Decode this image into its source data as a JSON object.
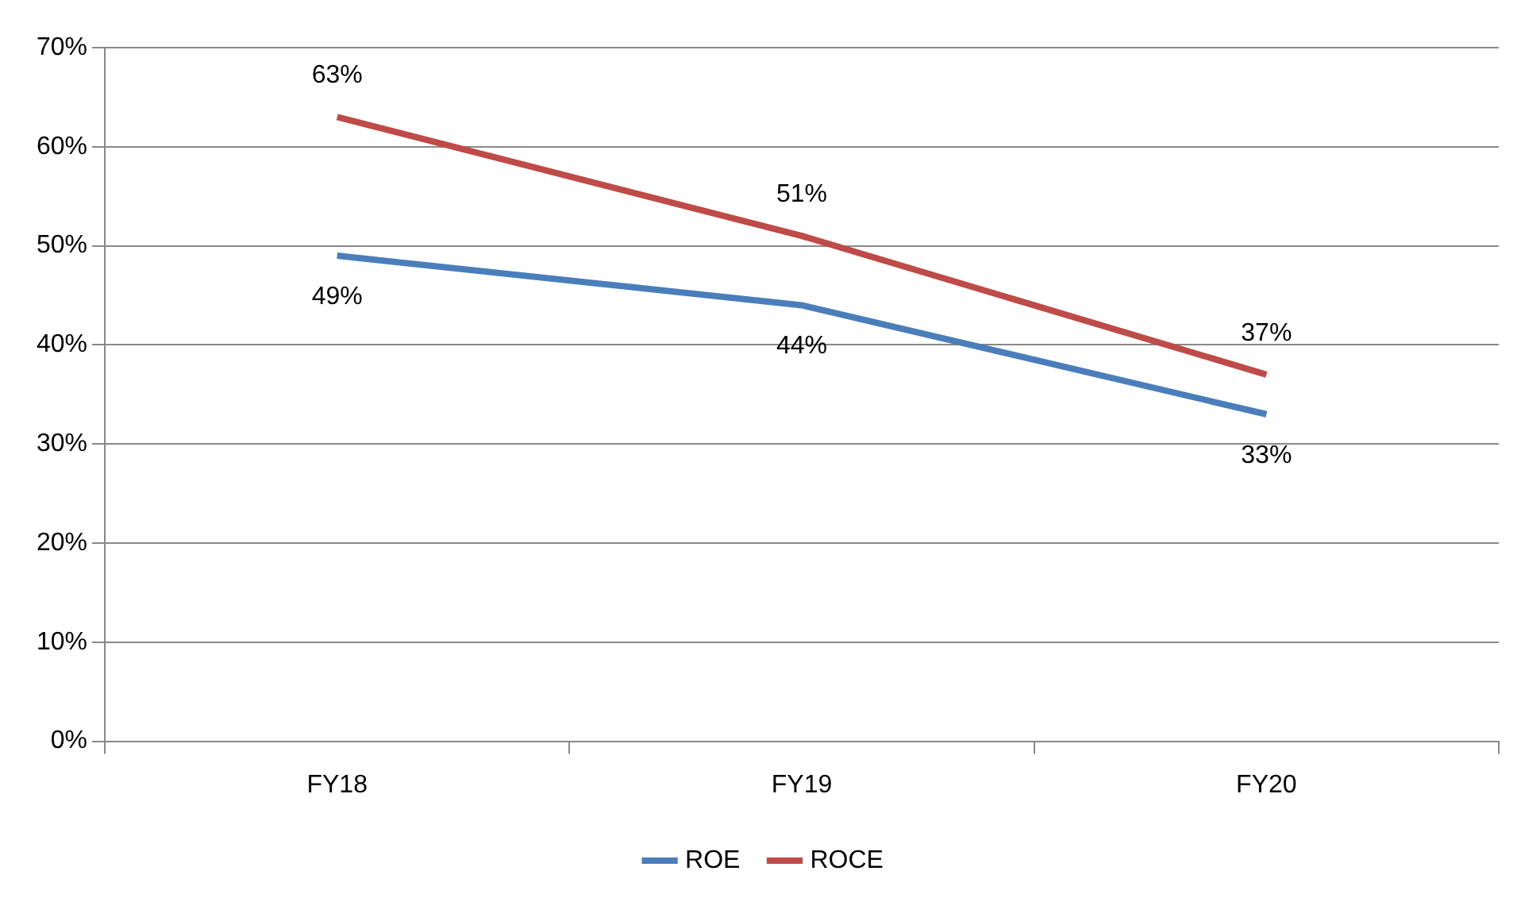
{
  "chart_data": {
    "type": "line",
    "categories": [
      "FY18",
      "FY19",
      "FY20"
    ],
    "series": [
      {
        "name": "ROE",
        "color": "#4a7ebb",
        "values": [
          49,
          44,
          33
        ],
        "value_labels": [
          "49%",
          "44%",
          "33%"
        ]
      },
      {
        "name": "ROCE",
        "color": "#be4b48",
        "values": [
          63,
          51,
          37
        ],
        "value_labels": [
          "63%",
          "51%",
          "37%"
        ]
      }
    ],
    "ylim": [
      0,
      70
    ],
    "yticks": [
      {
        "value": 0,
        "label": "0%"
      },
      {
        "value": 10,
        "label": "10%"
      },
      {
        "value": 20,
        "label": "20%"
      },
      {
        "value": 30,
        "label": "30%"
      },
      {
        "value": 40,
        "label": "40%"
      },
      {
        "value": 50,
        "label": "50%"
      },
      {
        "value": 60,
        "label": "60%"
      },
      {
        "value": 70,
        "label": "70%"
      }
    ],
    "grid": "y",
    "legend": "bottom",
    "marker": "none",
    "line_style": "solid"
  }
}
